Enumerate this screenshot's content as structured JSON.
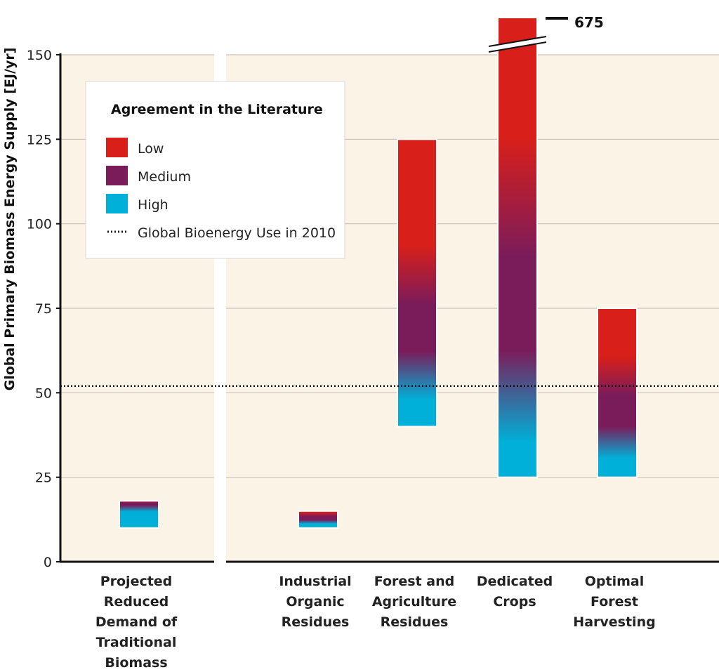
{
  "chart_data": {
    "type": "bar",
    "title": "",
    "ylabel": "Global Primary Biomass Energy Supply [EJ/yr]",
    "xlabel": "",
    "ylim": [
      0,
      150
    ],
    "yticks": [
      "0",
      "25",
      "50",
      "75",
      "100",
      "125",
      "150"
    ],
    "grid": true,
    "legend_position": "top-left",
    "reference_line": {
      "name": "Global Bioenergy Use in 2010",
      "value": 52
    },
    "legend": {
      "title": "Agreement in the Literature",
      "entries": [
        {
          "label": "Low",
          "color": "#d91f1a"
        },
        {
          "label": "Medium",
          "color": "#7b1c5a"
        },
        {
          "label": "High",
          "color": "#00b0d8"
        },
        {
          "label": "Global Bioenergy Use in 2010",
          "style": "dotted",
          "color": "#1a1a3a"
        }
      ]
    },
    "categories": [
      "Projected Reduced Demand of Traditional Biomass",
      "Industrial Organic Residues",
      "Forest and Agriculture Residues",
      "Dedicated Crops",
      "Optimal Forest Harvesting"
    ],
    "category_labels": [
      [
        "Projected",
        "Reduced",
        "Demand of",
        "Traditional",
        "Biomass"
      ],
      [
        "Industrial",
        "Organic",
        "Residues"
      ],
      [
        "Forest and",
        "Agriculture",
        "Residues"
      ],
      [
        "Dedicated",
        "Crops"
      ],
      [
        "Optimal",
        "Forest",
        "Harvesting"
      ]
    ],
    "ranges": [
      {
        "low": 10,
        "high": 18,
        "high_agreement_top": 16,
        "medium_agreement_top": 18
      },
      {
        "low": 10,
        "high": 15,
        "high_agreement_top": 11.5,
        "medium_agreement_top": 14
      },
      {
        "low": 40,
        "high": 125,
        "high_agreement_top": 50,
        "medium_agreement_top": 85
      },
      {
        "low": 25,
        "high": 675,
        "high_agreement_top": 38,
        "medium_agreement_top": 108,
        "broken_axis": true,
        "high_label": "675"
      },
      {
        "low": 25,
        "high": 75,
        "high_agreement_top": 32,
        "medium_agreement_top": 55
      }
    ],
    "colors": {
      "low": "#d91f1a",
      "medium": "#7b1c5a",
      "high": "#00b0d8",
      "panel": "#fcf3e7",
      "grid": "#c9c2b9"
    }
  }
}
